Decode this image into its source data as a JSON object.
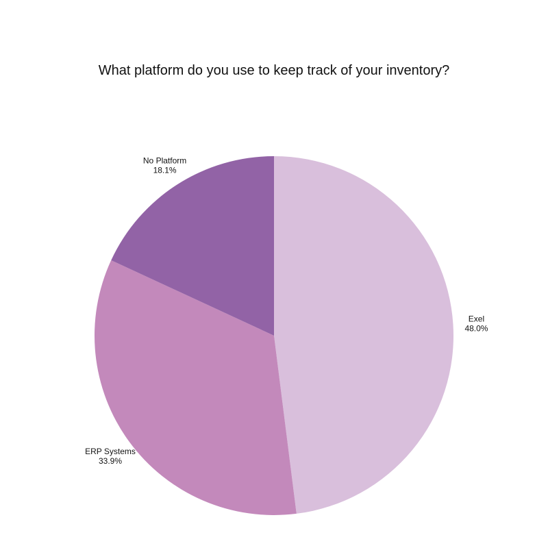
{
  "chart_data": {
    "type": "pie",
    "title": "What platform do you use to keep track of your inventory?",
    "slices": [
      {
        "label": "Exel",
        "value": 48.0,
        "display": "48.0%",
        "color": "#d9bfdc"
      },
      {
        "label": "ERP Systems",
        "value": 33.9,
        "display": "33.9%",
        "color": "#c389bb"
      },
      {
        "label": "No Platform",
        "value": 18.1,
        "display": "18.1%",
        "color": "#9263a6"
      }
    ]
  }
}
